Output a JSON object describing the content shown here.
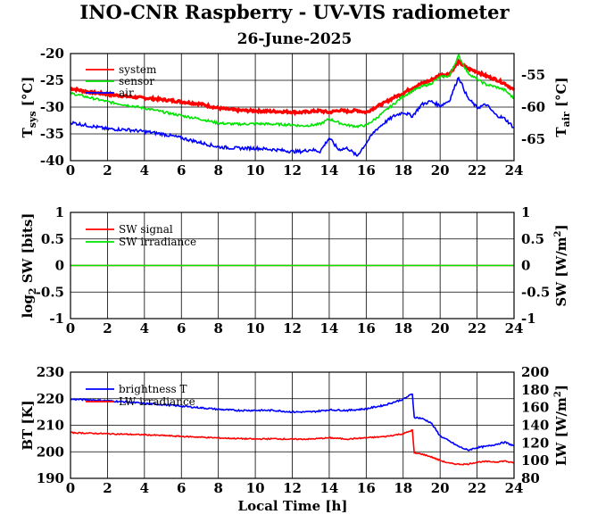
{
  "title": "INO-CNR Raspberry - UV-VIS radiometer",
  "date": "26-June-2025",
  "xlabel": "Local Time [h]",
  "chart_data": [
    {
      "type": "line",
      "panel": "temperature",
      "ylabel_main": "T",
      "ylabel_sub": "sys",
      "ylabel_unit": " [°C]",
      "y2label_main": "T",
      "y2label_sub": "air",
      "y2label_unit": " [°C]",
      "xlim": [
        0,
        24
      ],
      "xticks": [
        "0",
        "2",
        "4",
        "6",
        "8",
        "10",
        "12",
        "14",
        "16",
        "18",
        "20",
        "22",
        "24"
      ],
      "ylim": [
        -40,
        -20
      ],
      "yticks": [
        "-40",
        "-35",
        "-30",
        "-25",
        "-20"
      ],
      "y2lim": [
        -68.33,
        -51.67
      ],
      "y2ticks": [
        "-65",
        "-60",
        "-55"
      ],
      "series": [
        {
          "name": "system",
          "color": "#ff0000",
          "axis": "left",
          "x": [
            0,
            1,
            2,
            3,
            4,
            5,
            6,
            7,
            8,
            9,
            10,
            11,
            12,
            12.5,
            13,
            13.5,
            14,
            14.5,
            15,
            15.5,
            16,
            16.5,
            17,
            17.5,
            18,
            18.5,
            19,
            19.5,
            20,
            20.5,
            21,
            21.5,
            22,
            22.5,
            23,
            23.5,
            24
          ],
          "y": [
            -26.5,
            -27.2,
            -27.6,
            -28,
            -28.3,
            -28.6,
            -29,
            -29.4,
            -30.2,
            -30.6,
            -30.7,
            -30.8,
            -30.9,
            -31,
            -30.8,
            -30.7,
            -31,
            -30.6,
            -30.8,
            -30.6,
            -31,
            -30,
            -29.2,
            -28.2,
            -27.4,
            -26.4,
            -25.6,
            -25,
            -24,
            -23.8,
            -21.6,
            -22.8,
            -23.4,
            -24.2,
            -24.8,
            -25.6,
            -26.8
          ]
        },
        {
          "name": "sensor",
          "color": "#00e400",
          "axis": "left",
          "x": [
            0,
            1,
            2,
            3,
            4,
            5,
            6,
            7,
            8,
            9,
            10,
            11,
            12,
            12.5,
            13,
            13.5,
            14,
            14.5,
            15,
            15.5,
            16,
            16.5,
            17,
            17.5,
            18,
            18.5,
            19,
            19.5,
            20,
            20.5,
            21,
            21.5,
            22,
            22.5,
            23,
            23.5,
            24
          ],
          "y": [
            -27.4,
            -28.2,
            -29,
            -29.6,
            -30.2,
            -30.9,
            -31.6,
            -32.2,
            -33,
            -33.2,
            -33.1,
            -33.2,
            -33.3,
            -33.5,
            -33.4,
            -33.2,
            -32.2,
            -32.9,
            -33.4,
            -33.6,
            -33.4,
            -32.2,
            -30.8,
            -29.4,
            -28,
            -27,
            -26.2,
            -25.6,
            -24.4,
            -24.2,
            -20.4,
            -23.6,
            -24.8,
            -25.8,
            -26.2,
            -26.8,
            -28.4
          ]
        },
        {
          "name": "air",
          "color": "#0000ff",
          "axis": "right",
          "x": [
            0,
            1,
            2,
            3,
            4,
            5,
            6,
            7,
            8,
            9,
            10,
            11,
            12,
            12.5,
            13,
            13.5,
            14,
            14.5,
            15,
            15.5,
            16,
            16.5,
            17,
            17.5,
            18,
            18.5,
            19,
            19.5,
            20,
            20.5,
            21,
            21.5,
            22,
            22.5,
            23,
            23.5,
            24
          ],
          "y": [
            -62.4,
            -62.9,
            -63.4,
            -63.5,
            -63.8,
            -64.2,
            -64.8,
            -65.5,
            -66.2,
            -66.4,
            -66.4,
            -66.6,
            -66.9,
            -66.9,
            -66.6,
            -66.9,
            -64.8,
            -66.6,
            -66.4,
            -67.6,
            -65.6,
            -63.6,
            -62.4,
            -61.4,
            -60.8,
            -61.4,
            -59.6,
            -59.1,
            -59.8,
            -59,
            -55.3,
            -58.6,
            -60.1,
            -59.6,
            -61.2,
            -61.8,
            -63.2
          ]
        }
      ]
    },
    {
      "type": "line",
      "panel": "shortwave",
      "ylabel_main": "log",
      "ylabel_sub": "2",
      "ylabel_unit": " SW [bits]",
      "y2label_main": "SW [W/m",
      "y2label_sup": "2",
      "y2label_unit": "]",
      "xlim": [
        0,
        24
      ],
      "xticks": [
        "0",
        "2",
        "4",
        "6",
        "8",
        "10",
        "12",
        "14",
        "16",
        "18",
        "20",
        "22",
        "24"
      ],
      "ylim": [
        -1,
        1
      ],
      "yticks": [
        "-1",
        "-0.5",
        "0",
        "0.5",
        "1"
      ],
      "y2lim": [
        -1,
        1
      ],
      "y2ticks": [
        "-1",
        "-0.5",
        "0",
        "0.5",
        "1"
      ],
      "series": [
        {
          "name": "SW signal",
          "color": "#ff0000",
          "axis": "left",
          "x": [
            0,
            24
          ],
          "y": [
            0,
            0
          ]
        },
        {
          "name": "SW irradiance",
          "color": "#00e400",
          "axis": "right",
          "x": [
            0,
            24
          ],
          "y": [
            0,
            0
          ]
        }
      ]
    },
    {
      "type": "line",
      "panel": "longwave",
      "ylabel_main": "BT [K]",
      "y2label_main": "LW [W/m",
      "y2label_sup": "2",
      "y2label_unit": "]",
      "xlim": [
        0,
        24
      ],
      "xticks": [
        "0",
        "2",
        "4",
        "6",
        "8",
        "10",
        "12",
        "14",
        "16",
        "18",
        "20",
        "22",
        "24"
      ],
      "ylim": [
        190,
        230
      ],
      "yticks": [
        "190",
        "200",
        "210",
        "220",
        "230"
      ],
      "y2lim": [
        80,
        200
      ],
      "y2ticks": [
        "80",
        "100",
        "120",
        "140",
        "160",
        "180",
        "200"
      ],
      "series": [
        {
          "name": "brightness T",
          "color": "#0000ff",
          "axis": "left",
          "x": [
            0,
            1,
            2,
            3,
            4,
            5,
            6,
            7,
            8,
            9,
            10,
            11,
            12,
            13,
            14,
            15,
            16,
            17,
            18,
            18.5,
            18.6,
            19,
            19.5,
            20,
            20.5,
            21,
            21.5,
            22,
            22.5,
            23,
            23.5,
            24
          ],
          "y": [
            219.8,
            219.6,
            219.2,
            218.8,
            218.2,
            217.8,
            217.2,
            216.6,
            216,
            215.6,
            215.6,
            215.6,
            215,
            215,
            215.8,
            215.6,
            216.2,
            217.6,
            219.8,
            221.8,
            213,
            212.6,
            211,
            206,
            204,
            202,
            200.6,
            201.6,
            202,
            202.8,
            203.6,
            202.2
          ]
        },
        {
          "name": "LW irradiance",
          "color": "#ff0000",
          "axis": "right",
          "x": [
            0,
            1,
            2,
            3,
            4,
            5,
            6,
            7,
            8,
            9,
            10,
            11,
            12,
            13,
            14,
            15,
            16,
            17,
            18,
            18.5,
            18.6,
            19,
            19.5,
            20,
            20.5,
            21,
            21.5,
            22,
            22.5,
            23,
            23.5,
            24
          ],
          "y": [
            131.6,
            131,
            130.4,
            129.8,
            129.2,
            128.4,
            127.4,
            126.6,
            125.6,
            125,
            124.4,
            124.8,
            124.2,
            124.4,
            125.8,
            124.4,
            125.8,
            127.2,
            130.4,
            134.4,
            108.4,
            107.6,
            104.4,
            100.2,
            97,
            96,
            96,
            98.4,
            99,
            98.6,
            99.6,
            97.2
          ]
        }
      ]
    }
  ]
}
